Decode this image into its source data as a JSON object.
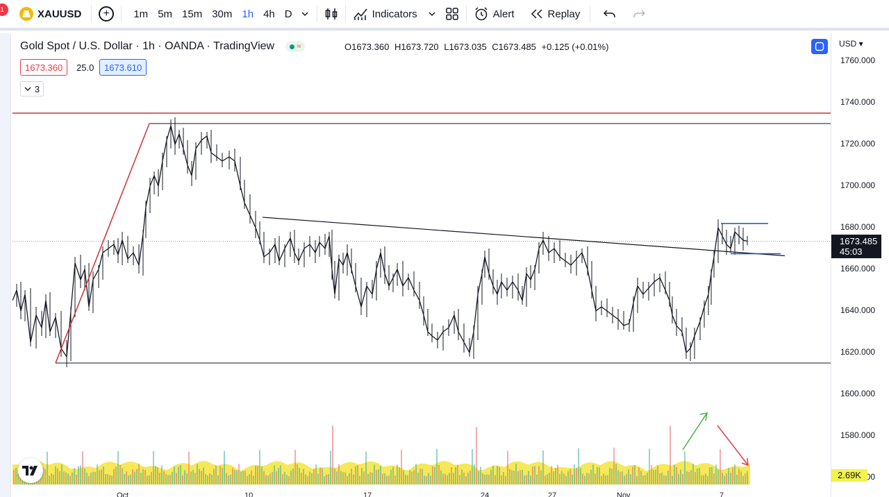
{
  "toolbar": {
    "notification_count": "1",
    "symbol": "XAUUSD",
    "timeframes": [
      "1m",
      "5m",
      "15m",
      "30m",
      "1h",
      "4h",
      "D"
    ],
    "active_timeframe": "1h",
    "indicators_label": "Indicators",
    "alert_label": "Alert",
    "replay_label": "Replay"
  },
  "legend": {
    "title": "Gold Spot / U.S. Dollar · 1h · OANDA · TradingView",
    "open": "O1673.360",
    "high": "H1673.720",
    "low": "L1673.035",
    "close": "C1673.485",
    "change": "+0.125 (+0.01%)",
    "sell_price": "1673.360",
    "spread": "25.0",
    "buy_price": "1673.610",
    "indicator_count": "3"
  },
  "price_axis": {
    "currency": "USD",
    "ticks": [
      "1760.000",
      "1740.000",
      "1720.000",
      "1700.000",
      "1680.000",
      "1660.000",
      "1640.000",
      "1620.000",
      "1600.000",
      "1580.000",
      "1560.000"
    ],
    "last_price": "1673.485",
    "countdown": "45:03",
    "volume_tag": "2.69K"
  },
  "time_axis": {
    "labels": [
      "Oct",
      "10",
      "17",
      "24",
      "27",
      "Nov",
      "7"
    ]
  },
  "colors": {
    "accent": "#2962ff",
    "resistance_line": "#d32f2f",
    "volume_area": "#f4e43b",
    "up_volume": "#26a69a",
    "down_volume": "#ef5350",
    "drawing_blue": "#1e4fb5"
  },
  "chart_data": {
    "type": "candlestick",
    "price_levels": [
      1735,
      1730,
      1615
    ],
    "price_range": [
      1613,
      1763
    ]
  }
}
